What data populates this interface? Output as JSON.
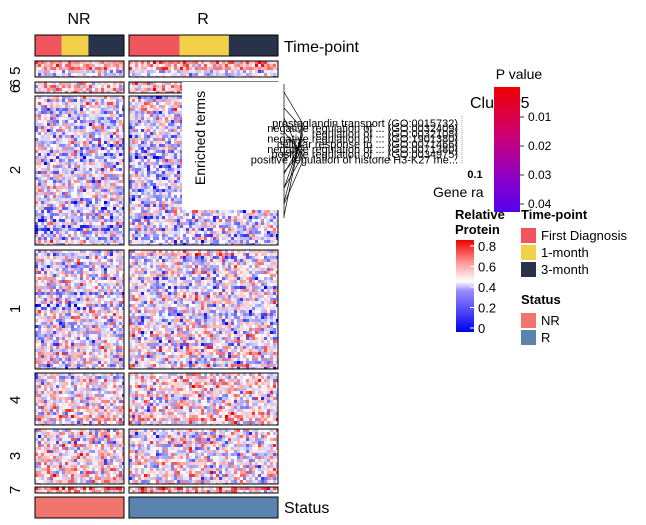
{
  "chart_data": {
    "type": "heatmap",
    "groups": [
      {
        "label": "NR",
        "timepoint_split": [
          0.3,
          0.6
        ]
      },
      {
        "label": "R",
        "timepoint_split": [
          0.34,
          0.67
        ]
      }
    ],
    "clusters": [
      {
        "id": "6",
        "label": "6 5",
        "kind": "split"
      },
      {
        "id": "6b",
        "label": "6",
        "kind": "thin"
      },
      {
        "id": "2",
        "label": "2",
        "bias": -0.12
      },
      {
        "id": "1",
        "label": "1",
        "bias": -0.06
      },
      {
        "id": "4",
        "label": "4",
        "bias": 0.1
      },
      {
        "id": "3",
        "label": "3",
        "bias": 0.08
      },
      {
        "id": "7",
        "label": "7",
        "bias": 0.4
      }
    ],
    "top_annotation": {
      "label": "Time-point",
      "levels": [
        "First Diagnosis",
        "1-month",
        "3-month"
      ],
      "colors": [
        "#F0555E",
        "#F2D04A",
        "#283248"
      ]
    },
    "bottom_annotation": {
      "label": "Status",
      "levels": [
        "NR",
        "R"
      ],
      "colors": [
        "#F0756D",
        "#5A84AE"
      ]
    },
    "color_scale": {
      "title_line1": "Relative",
      "title_line2": "Protein",
      "ticks": [
        "0.8",
        "0.6",
        "0.4",
        "0.2",
        "0"
      ],
      "low": "#0000EE",
      "mid": "#FFFFFF",
      "high": "#EE0000"
    },
    "enrichment_inset": {
      "title": "Cluster5",
      "ylabel": "Enriched terms",
      "xlabel": "Gene ra",
      "x_tick": "0.1",
      "terms": [
        "prostaglandin transport (GO:0015732)",
        "negative regulation of ... (GO:0032409)",
        "regulation of ... (GO:0032108)",
        "negative regulation of ... (GO:1901380)",
        "cellular response to ... (GO:0071466)",
        "negative regulation of ... (GO:0071380)",
        "positive regulation of ... (GO:0034975)",
        "positive regulation of histone H3-K27 me..."
      ],
      "pvalue_legend": {
        "title": "P value",
        "ticks": [
          "0.01",
          "0.02",
          "0.03",
          "0.04"
        ],
        "colors": [
          "#EE0000",
          "#CC0066",
          "#8800BB",
          "#5500EE"
        ]
      }
    }
  }
}
